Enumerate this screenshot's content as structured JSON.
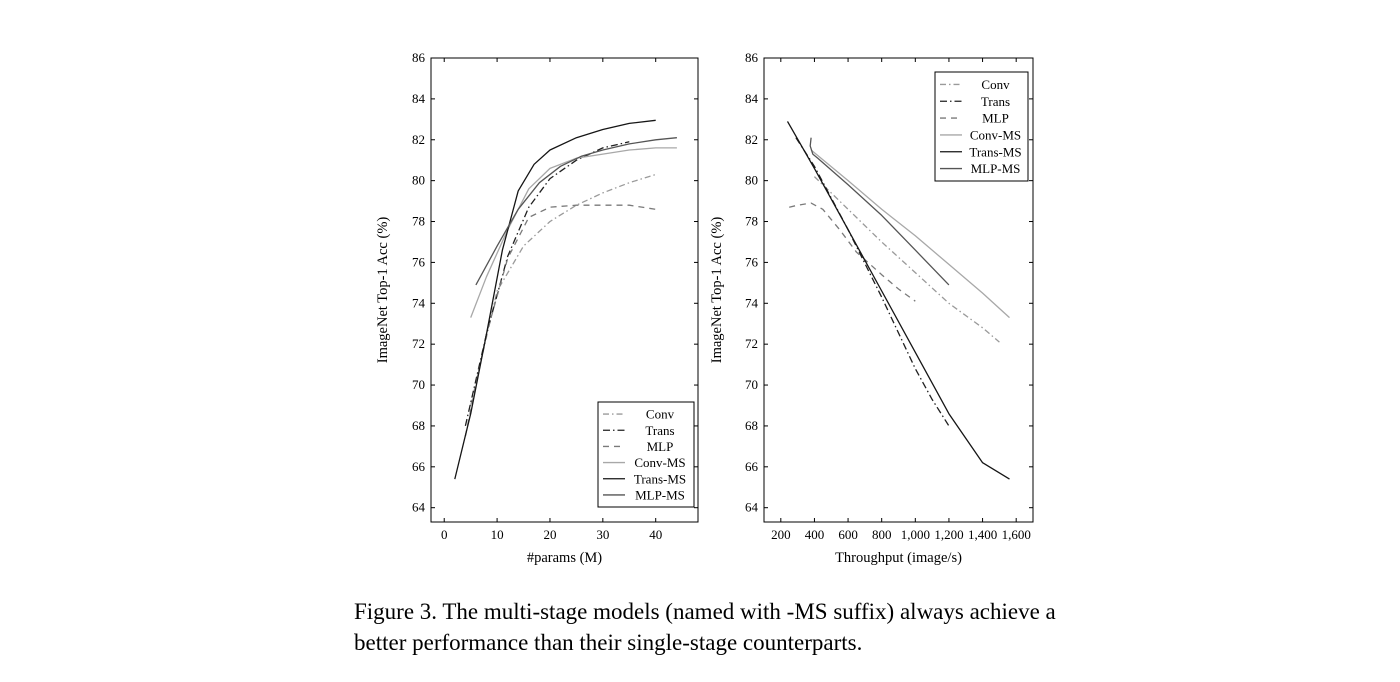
{
  "caption": "Figure 3. The multi-stage models (named with -MS suffix) always achieve a better performance than their single-stage counterparts.",
  "chart_data": [
    {
      "type": "line",
      "xlabel": "#params (M)",
      "ylabel": "ImageNet Top-1 Acc (%)",
      "xlim": [
        -2.5,
        48
      ],
      "ylim": [
        63.3,
        86
      ],
      "xticks": [
        0,
        10,
        20,
        30,
        40
      ],
      "xtick_labels": [
        "0",
        "10",
        "20",
        "30",
        "40"
      ],
      "yticks": [
        64,
        66,
        68,
        70,
        72,
        74,
        76,
        78,
        80,
        82,
        84,
        86
      ],
      "grid": false,
      "legend_position": "bottom-right",
      "series": [
        {
          "name": "Conv",
          "dash": "6 3 1.5 3",
          "color": "#9a9a9a",
          "x": [
            5,
            10,
            15,
            20,
            25,
            30,
            35,
            40
          ],
          "y": [
            69.0,
            74.6,
            76.8,
            78.0,
            78.8,
            79.4,
            79.9,
            80.3
          ]
        },
        {
          "name": "Trans",
          "dash": "7 3 1.5 3",
          "color": "#202020",
          "x": [
            4,
            8,
            12,
            16,
            20,
            25,
            30,
            35
          ],
          "y": [
            68.0,
            72.5,
            76.3,
            78.7,
            80.1,
            81.0,
            81.6,
            81.9
          ]
        },
        {
          "name": "MLP",
          "dash": "6 5",
          "color": "#7a7a7a",
          "x": [
            4,
            8,
            12,
            16,
            20,
            25,
            30,
            35,
            40
          ],
          "y": [
            67.5,
            72.5,
            76.2,
            78.2,
            78.7,
            78.8,
            78.8,
            78.8,
            78.6
          ]
        },
        {
          "name": "Conv-MS",
          "dash": "",
          "color": "#a8a8a8",
          "x": [
            5,
            8,
            12,
            16,
            20,
            25,
            30,
            35,
            40,
            44
          ],
          "y": [
            73.3,
            75.3,
            77.6,
            79.6,
            80.6,
            81.1,
            81.3,
            81.5,
            81.6,
            81.6
          ]
        },
        {
          "name": "Trans-MS",
          "dash": "",
          "color": "#151515",
          "x": [
            2,
            5,
            8,
            11,
            14,
            17,
            20,
            25,
            30,
            35,
            40
          ],
          "y": [
            65.4,
            68.6,
            72.5,
            76.6,
            79.5,
            80.8,
            81.5,
            82.1,
            82.5,
            82.8,
            82.95
          ]
        },
        {
          "name": "MLP-MS",
          "dash": "",
          "color": "#555555",
          "x": [
            6,
            10,
            14,
            18,
            22,
            26,
            30,
            35,
            40,
            44
          ],
          "y": [
            74.9,
            76.8,
            78.6,
            79.9,
            80.7,
            81.2,
            81.5,
            81.8,
            82.0,
            82.1
          ]
        }
      ]
    },
    {
      "type": "line",
      "xlabel": "Throughput (image/s)",
      "ylabel": "ImageNet Top-1 Acc (%)",
      "xlim": [
        100,
        1700
      ],
      "ylim": [
        63.3,
        86
      ],
      "xticks": [
        200,
        400,
        600,
        800,
        1000,
        1200,
        1400,
        1600
      ],
      "xtick_labels": [
        "200",
        "400",
        "600",
        "800",
        "1,000",
        "1,200",
        "1,400",
        "1,600"
      ],
      "yticks": [
        64,
        66,
        68,
        70,
        72,
        74,
        76,
        78,
        80,
        82,
        84,
        86
      ],
      "grid": false,
      "legend_position": "top-right",
      "series": [
        {
          "name": "Conv",
          "dash": "6 3 1.5 3",
          "color": "#9a9a9a",
          "x": [
            400,
            600,
            800,
            1000,
            1200,
            1400,
            1500
          ],
          "y": [
            80.2,
            78.6,
            77.0,
            75.5,
            74.0,
            72.8,
            72.1
          ]
        },
        {
          "name": "Trans",
          "dash": "7 3 1.5 3",
          "color": "#202020",
          "x": [
            290,
            400,
            600,
            800,
            1000,
            1100,
            1200
          ],
          "y": [
            82.1,
            80.7,
            77.6,
            74.3,
            70.8,
            69.3,
            68.0
          ]
        },
        {
          "name": "MLP",
          "dash": "6 5",
          "color": "#7a7a7a",
          "x": [
            250,
            300,
            380,
            450,
            550,
            650,
            800,
            900,
            1000
          ],
          "y": [
            78.7,
            78.8,
            78.9,
            78.6,
            77.6,
            76.5,
            75.4,
            74.7,
            74.1
          ]
        },
        {
          "name": "Conv-MS",
          "dash": "",
          "color": "#a8a8a8",
          "x": [
            380,
            600,
            800,
            1000,
            1200,
            1400,
            1560
          ],
          "y": [
            81.5,
            80.0,
            78.6,
            77.3,
            75.9,
            74.5,
            73.3
          ]
        },
        {
          "name": "Trans-MS",
          "dash": "",
          "color": "#151515",
          "x": [
            240,
            400,
            600,
            800,
            1000,
            1200,
            1400,
            1560
          ],
          "y": [
            82.9,
            80.6,
            77.6,
            74.6,
            71.6,
            68.6,
            66.2,
            65.4
          ]
        },
        {
          "name": "MLP-MS",
          "dash": "",
          "color": "#555555",
          "x": [
            380,
            375,
            390,
            420,
            600,
            800,
            1000,
            1200
          ],
          "y": [
            82.1,
            81.7,
            81.3,
            81.1,
            79.8,
            78.3,
            76.6,
            74.9
          ]
        }
      ]
    }
  ]
}
